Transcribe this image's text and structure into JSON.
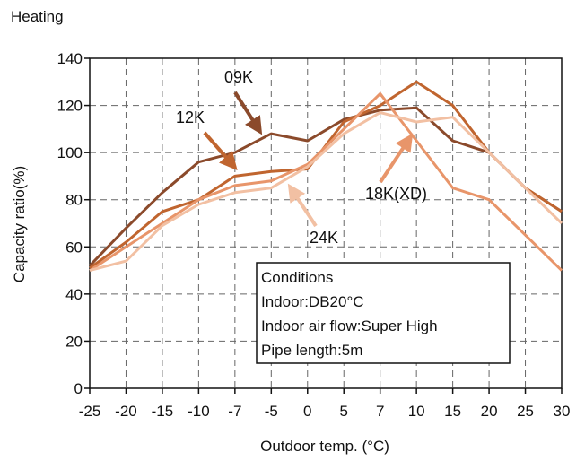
{
  "chart_data": {
    "type": "line",
    "title": "Heating",
    "xlabel": "Outdoor temp. (°C)",
    "ylabel": "Capacity ratio(%)",
    "categories": [
      "-25",
      "-20",
      "-15",
      "-10",
      "-7",
      "-5",
      "0",
      "5",
      "7",
      "10",
      "15",
      "20",
      "25",
      "30"
    ],
    "ylim": [
      0,
      140
    ],
    "yticks": [
      0,
      20,
      40,
      60,
      80,
      100,
      120,
      140
    ],
    "grid": true,
    "series": [
      {
        "name": "09K",
        "color": "#8b4a2b",
        "values": [
          52,
          68,
          83,
          96,
          100,
          108,
          105,
          114,
          118,
          119,
          105,
          100,
          85,
          75
        ]
      },
      {
        "name": "12K",
        "color": "#c0652f",
        "values": [
          51,
          62,
          75,
          80,
          90,
          92,
          93,
          113,
          120,
          130,
          120,
          100,
          85,
          75
        ]
      },
      {
        "name": "18K(XD)",
        "color": "#e8956a",
        "values": [
          50,
          60,
          70,
          80,
          86,
          88,
          95,
          110,
          125,
          105,
          85,
          80,
          65,
          50
        ]
      },
      {
        "name": "24K",
        "color": "#f2c0a3",
        "values": [
          50,
          54,
          69,
          78,
          83,
          85,
          94,
          108,
          117,
          113,
          115,
          100,
          85,
          70
        ]
      }
    ],
    "annotations": [
      "09K",
      "12K",
      "18K(XD)",
      "24K"
    ],
    "conditions": {
      "title": "Conditions",
      "lines": [
        "Indoor:DB20°C",
        "Indoor air flow:Super High",
        "Pipe length:5m"
      ]
    }
  }
}
